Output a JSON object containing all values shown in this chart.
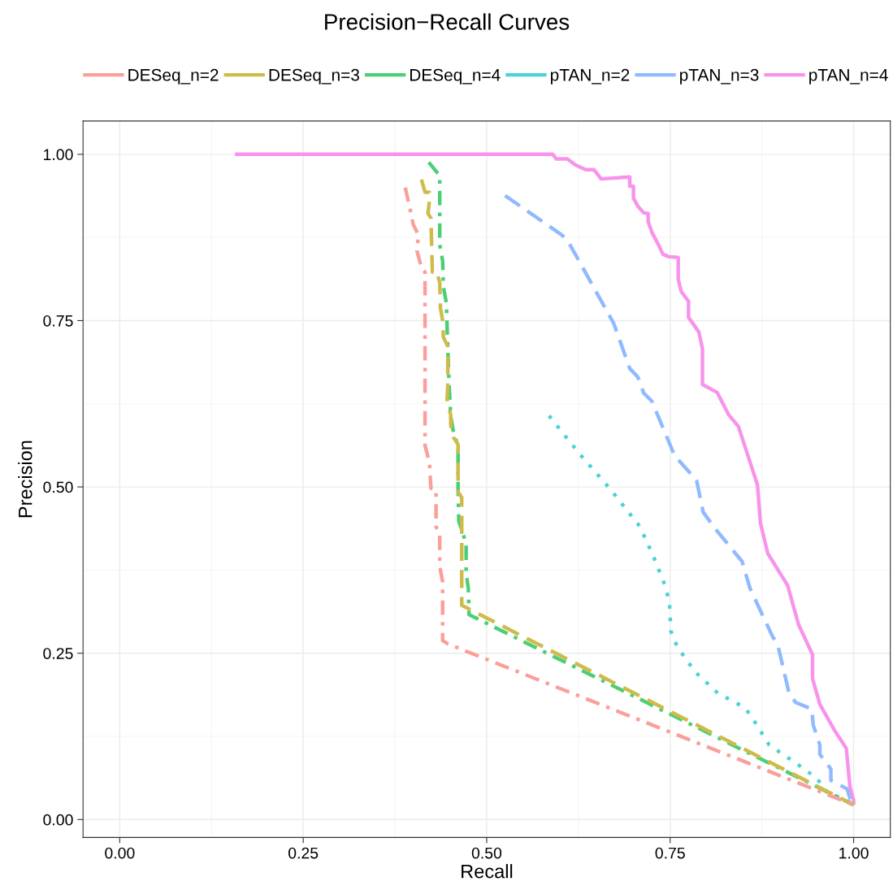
{
  "chart_data": {
    "type": "line",
    "title": "Precision−Recall Curves",
    "xlabel": "Recall",
    "ylabel": "Precision",
    "xlim": [
      -0.05,
      1.05
    ],
    "ylim": [
      -0.027,
      1.05
    ],
    "xticks": [
      {
        "value": 0,
        "label": "0.00"
      },
      {
        "value": 0.25,
        "label": "0.25"
      },
      {
        "value": 0.5,
        "label": "0.50"
      },
      {
        "value": 0.75,
        "label": "0.75"
      },
      {
        "value": 1,
        "label": "1.00"
      }
    ],
    "yticks": [
      {
        "value": 0,
        "label": "0.00"
      },
      {
        "value": 0.25,
        "label": "0.25"
      },
      {
        "value": 0.5,
        "label": "0.50"
      },
      {
        "value": 0.75,
        "label": "0.75"
      },
      {
        "value": 1,
        "label": "1.00"
      }
    ],
    "grid": true,
    "legend": "top",
    "series": [
      {
        "name": "DESeq_n=2",
        "color": "#fa9f99",
        "line_style": "dashdot",
        "x": [
          0.389,
          0.394,
          0.4,
          0.407,
          0.405,
          0.411,
          0.416,
          0.416,
          0.422,
          0.424,
          0.431,
          0.431,
          0.436,
          0.436,
          0.44,
          0.44,
          0.447,
          1.0
        ],
        "values": [
          0.95,
          0.926,
          0.894,
          0.879,
          0.855,
          0.83,
          0.823,
          0.562,
          0.537,
          0.498,
          0.496,
          0.44,
          0.43,
          0.381,
          0.357,
          0.269,
          0.264,
          0.022
        ]
      },
      {
        "name": "DESeq_n=3",
        "color": "#cdbc4c",
        "line_style": "dashed",
        "x": [
          0.411,
          0.416,
          0.422,
          0.422,
          0.42,
          0.424,
          0.426,
          0.431,
          0.436,
          0.437,
          0.44,
          0.441,
          0.447,
          0.447,
          0.446,
          0.451,
          0.451,
          0.455,
          0.461,
          0.461,
          0.466,
          0.466,
          0.475,
          1.0
        ],
        "values": [
          0.962,
          0.943,
          0.943,
          0.93,
          0.911,
          0.904,
          0.823,
          0.825,
          0.808,
          0.769,
          0.75,
          0.725,
          0.711,
          0.652,
          0.632,
          0.608,
          0.593,
          0.574,
          0.564,
          0.493,
          0.484,
          0.322,
          0.317,
          0.022
        ]
      },
      {
        "name": "DESeq_n=4",
        "color": "#4ccf74",
        "line_style": "dashdot",
        "x": [
          0.421,
          0.436,
          0.436,
          0.44,
          0.441,
          0.445,
          0.447,
          0.449,
          0.451,
          0.455,
          0.461,
          0.461,
          0.462,
          0.466,
          0.472,
          0.472,
          0.475,
          0.476,
          1.0
        ],
        "values": [
          0.988,
          0.968,
          0.864,
          0.84,
          0.801,
          0.777,
          0.708,
          0.65,
          0.606,
          0.581,
          0.562,
          0.498,
          0.449,
          0.435,
          0.415,
          0.371,
          0.347,
          0.308,
          0.022
        ]
      },
      {
        "name": "pTAN_n=2",
        "color": "#4cd2d6",
        "line_style": "dotted",
        "x": [
          0.585,
          0.627,
          0.669,
          0.709,
          0.727,
          0.743,
          0.749,
          0.751,
          0.76,
          0.784,
          0.815,
          0.852,
          0.863,
          0.885,
          0.921,
          0.949,
          0.967,
          0.987,
          1.0
        ],
        "values": [
          0.607,
          0.549,
          0.496,
          0.44,
          0.396,
          0.352,
          0.327,
          0.283,
          0.259,
          0.222,
          0.19,
          0.168,
          0.151,
          0.112,
          0.085,
          0.063,
          0.037,
          0.032,
          0.022
        ]
      },
      {
        "name": "pTAN_n=3",
        "color": "#90baff",
        "line_style": "dashed",
        "x": [
          0.525,
          0.602,
          0.61,
          0.673,
          0.695,
          0.706,
          0.714,
          0.725,
          0.75,
          0.756,
          0.786,
          0.795,
          0.813,
          0.848,
          0.859,
          0.89,
          0.896,
          0.912,
          0.921,
          0.943,
          0.945,
          0.954,
          0.954,
          0.969,
          0.969,
          0.991,
          0.996,
          1.0
        ],
        "values": [
          0.938,
          0.879,
          0.871,
          0.746,
          0.678,
          0.665,
          0.641,
          0.629,
          0.563,
          0.547,
          0.51,
          0.462,
          0.435,
          0.388,
          0.347,
          0.274,
          0.266,
          0.19,
          0.176,
          0.166,
          0.142,
          0.112,
          0.098,
          0.076,
          0.059,
          0.046,
          0.029,
          0.022
        ]
      },
      {
        "name": "pTAN_n=4",
        "color": "#f893ec",
        "line_style": "solid",
        "x": [
          0.157,
          0.59,
          0.595,
          0.61,
          0.621,
          0.635,
          0.646,
          0.656,
          0.695,
          0.695,
          0.7,
          0.7,
          0.706,
          0.714,
          0.72,
          0.72,
          0.725,
          0.734,
          0.74,
          0.748,
          0.761,
          0.761,
          0.765,
          0.775,
          0.775,
          0.789,
          0.794,
          0.794,
          0.814,
          0.83,
          0.843,
          0.869,
          0.873,
          0.883,
          0.91,
          0.925,
          0.944,
          0.944,
          0.954,
          0.974,
          0.99,
          0.995,
          1.0,
          1.0
        ],
        "values": [
          1.0,
          1.0,
          0.993,
          0.993,
          0.984,
          0.977,
          0.977,
          0.963,
          0.966,
          0.952,
          0.952,
          0.934,
          0.922,
          0.912,
          0.911,
          0.899,
          0.883,
          0.864,
          0.85,
          0.846,
          0.845,
          0.812,
          0.794,
          0.779,
          0.755,
          0.733,
          0.708,
          0.654,
          0.642,
          0.608,
          0.591,
          0.503,
          0.446,
          0.4,
          0.352,
          0.293,
          0.248,
          0.212,
          0.173,
          0.134,
          0.107,
          0.049,
          0.029,
          0.022
        ]
      }
    ]
  }
}
